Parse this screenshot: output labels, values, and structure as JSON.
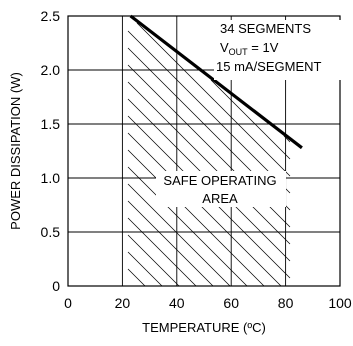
{
  "chart_data": {
    "type": "line",
    "xlabel": "TEMPERATURE (ºC)",
    "ylabel": "POWER DISSIPATION (W)",
    "xlim": [
      0,
      100
    ],
    "ylim": [
      0,
      2.5
    ],
    "x_ticks": [
      "0",
      "20",
      "40",
      "60",
      "80",
      "100"
    ],
    "y_ticks": [
      "0",
      "0.5",
      "1.0",
      "1.5",
      "2.0",
      "2.5"
    ],
    "grid": true,
    "series": [
      {
        "x": [
          23,
          86
        ],
        "y": [
          2.5,
          1.28
        ]
      }
    ],
    "annotations": {
      "line1": "34 SEGMENTS",
      "vout_main": "V",
      "vout_sub": "OUT",
      "vout_rest": " = 1V",
      "line3": "15 mA/SEGMENT",
      "region_line1": "SAFE OPERATING",
      "region_line2": "AREA"
    },
    "region_label": "SAFE OPERATING AREA"
  }
}
